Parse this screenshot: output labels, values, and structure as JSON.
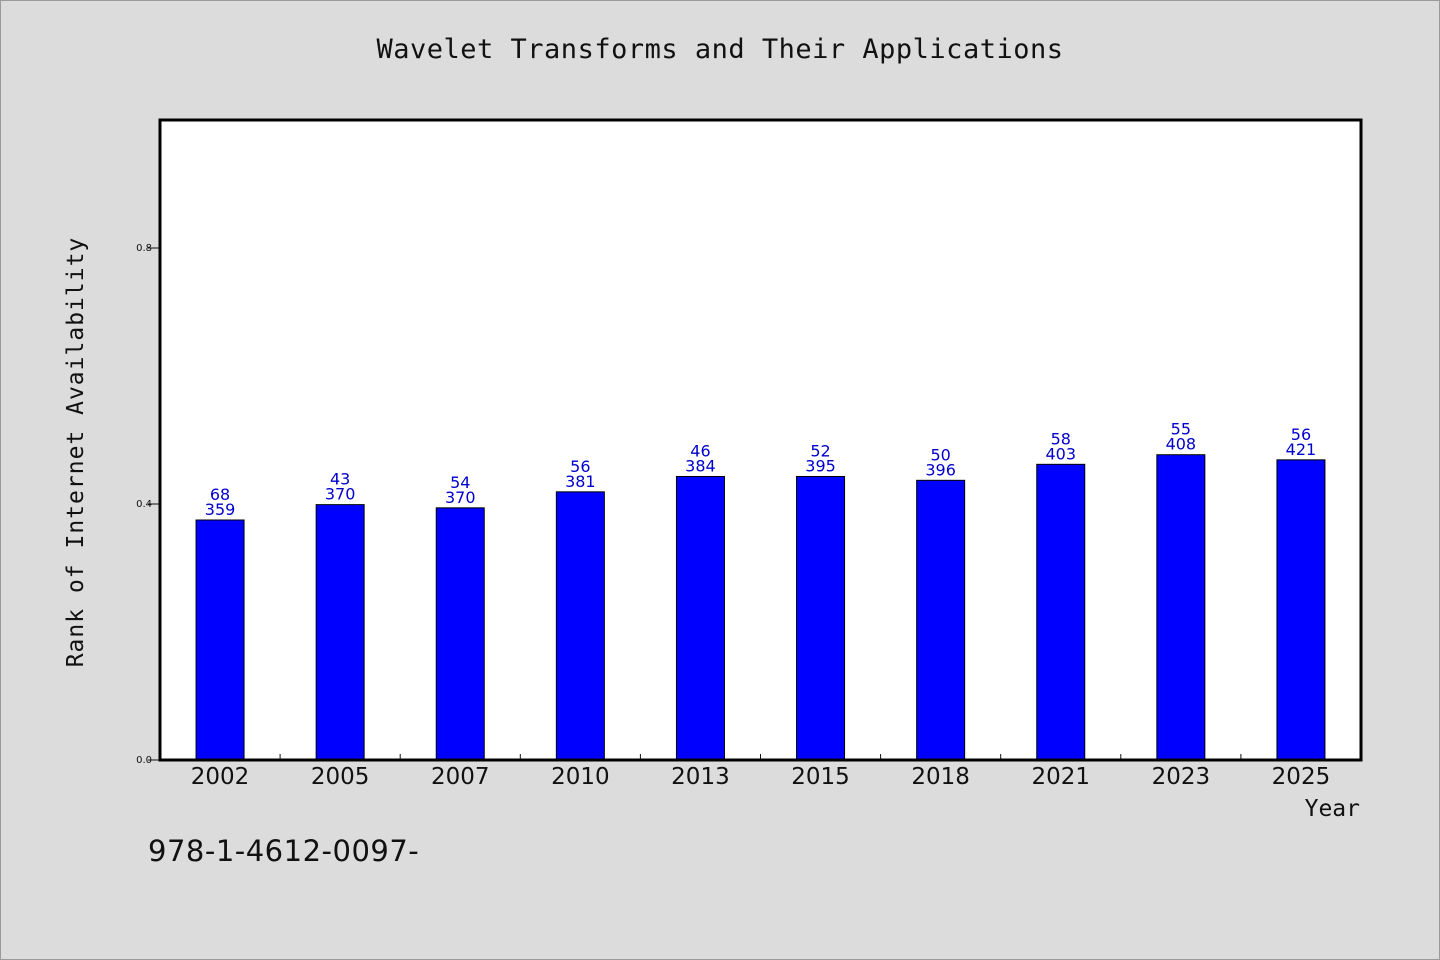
{
  "chart_data": {
    "type": "bar",
    "title": "Wavelet Transforms and Their Applications",
    "xlabel": "Year",
    "ylabel": "Rank of Internet Availability",
    "categories": [
      "2002",
      "2005",
      "2007",
      "2010",
      "2013",
      "2015",
      "2018",
      "2021",
      "2023",
      "2025"
    ],
    "values": [
      0.375,
      0.399,
      0.394,
      0.419,
      0.443,
      0.443,
      0.437,
      0.462,
      0.477,
      0.469
    ],
    "label_top": [
      "68",
      "43",
      "54",
      "56",
      "46",
      "52",
      "50",
      "58",
      "55",
      "56"
    ],
    "label_bottom": [
      "359",
      "370",
      "370",
      "381",
      "384",
      "395",
      "396",
      "403",
      "408",
      "421"
    ],
    "ylim": [
      0.0,
      1.0
    ],
    "yticks": [
      0.0,
      0.4,
      0.8
    ],
    "ytick_labels": [
      "0.0",
      "0.4",
      "0.8"
    ],
    "grid": false,
    "bar_color": "#0000ff",
    "label_color": "#0000cc",
    "plot_background": "#ffffff",
    "page_background": "#dcdcdc"
  },
  "footer": {
    "code": "978-1-4612-0097-"
  }
}
